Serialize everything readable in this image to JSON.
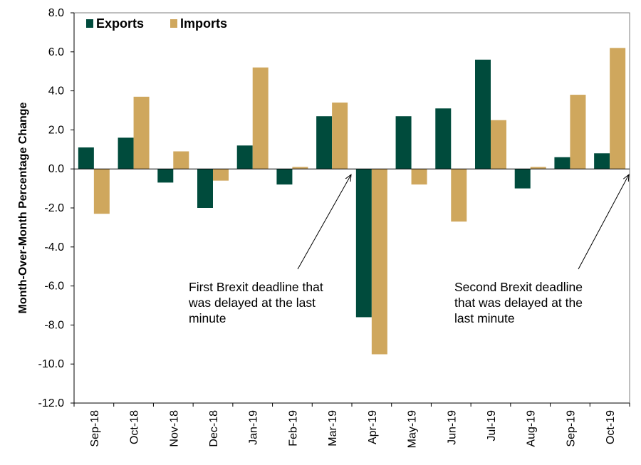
{
  "chart_data": {
    "type": "bar",
    "title": "",
    "xlabel": "",
    "ylabel": "Month-Over-Month Percentage Change",
    "ylim": [
      -12,
      8
    ],
    "y_ticks": [
      "8.0",
      "6.0",
      "4.0",
      "2.0",
      "0.0",
      "-2.0",
      "-4.0",
      "-6.0",
      "-8.0",
      "-10.0",
      "-12.0"
    ],
    "grid": false,
    "legend_position": "top-left",
    "categories": [
      "Sep-18",
      "Oct-18",
      "Nov-18",
      "Dec-18",
      "Jan-19",
      "Feb-19",
      "Mar-19",
      "Apr-19",
      "May-19",
      "Jun-19",
      "Jul-19",
      "Aug-19",
      "Sep-19",
      "Oct-19"
    ],
    "series": [
      {
        "name": "Exports",
        "color": "#004b3c",
        "values": [
          1.1,
          1.6,
          -0.7,
          -2.0,
          1.2,
          -0.8,
          2.7,
          -7.6,
          2.7,
          3.1,
          5.6,
          -1.0,
          0.6,
          0.8
        ]
      },
      {
        "name": "Imports",
        "color": "#cfa75d",
        "values": [
          -2.3,
          3.7,
          0.9,
          -0.6,
          5.2,
          0.1,
          3.4,
          -9.5,
          -0.8,
          -2.7,
          2.5,
          0.1,
          3.8,
          6.2
        ]
      }
    ],
    "annotations": [
      {
        "id": "first",
        "lines": [
          "First Brexit deadline that",
          "was delayed at the last",
          "minute"
        ],
        "points_to_category": "Mar-19",
        "points_to_value": 0.0
      },
      {
        "id": "second",
        "lines": [
          "Second Brexit deadline",
          "that was delayed at the",
          "last minute"
        ],
        "points_to_category": "Oct-19",
        "points_to_value": 0.0
      }
    ]
  }
}
